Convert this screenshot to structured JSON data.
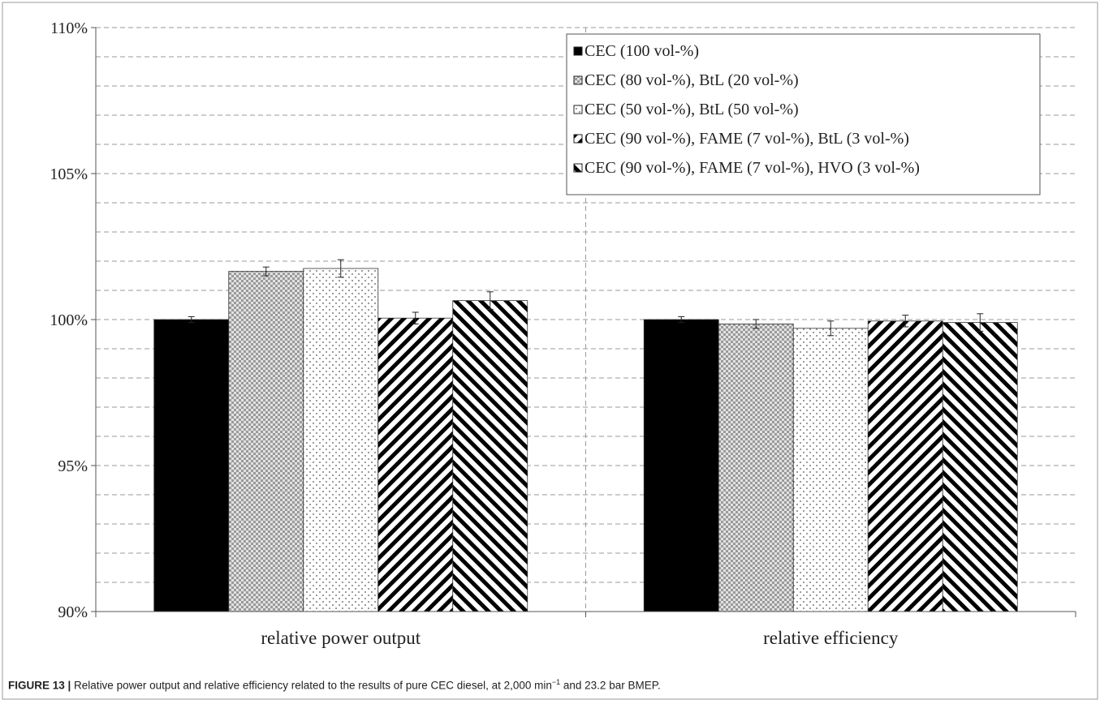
{
  "chart_data": {
    "type": "bar",
    "categories": [
      "relative power output",
      "relative efficiency"
    ],
    "series": [
      {
        "name": "CEC (100 vol-%)",
        "values": [
          100.0,
          100.0
        ],
        "errors": [
          0.1,
          0.1
        ],
        "pattern": "solid",
        "color": "#000000"
      },
      {
        "name": "CEC (80 vol-%), BtL (20 vol-%)",
        "values": [
          101.65,
          99.85
        ],
        "errors": [
          0.15,
          0.15
        ],
        "pattern": "checker",
        "color": "#9a9a9a"
      },
      {
        "name": "CEC (50 vol-%), BtL (50 vol-%)",
        "values": [
          101.75,
          99.7
        ],
        "errors": [
          0.3,
          0.25
        ],
        "pattern": "dots",
        "color": "#666666"
      },
      {
        "name": "CEC (90 vol-%), FAME (7 vol-%), BtL (3 vol-%)",
        "values": [
          100.05,
          99.95
        ],
        "errors": [
          0.2,
          0.2
        ],
        "pattern": "hatch-right",
        "color": "#000000"
      },
      {
        "name": "CEC (90 vol-%), FAME (7 vol-%), HVO (3 vol-%)",
        "values": [
          100.65,
          99.9
        ],
        "errors": [
          0.3,
          0.3
        ],
        "pattern": "hatch-left",
        "color": "#000000"
      }
    ],
    "ylim": [
      90,
      110
    ],
    "yticks": [
      "90%",
      "95%",
      "100%",
      "105%",
      "110%"
    ],
    "ytick_values": [
      90,
      95,
      100,
      105,
      110
    ],
    "grid": true,
    "legend_position": "top-right"
  },
  "caption": {
    "label": "FIGURE 13 |",
    "text_before": " Relative power output and relative efficiency related to the results of pure CEC diesel, at 2,000 min",
    "superscript": "−1",
    "text_after": " and 23.2 bar BMEP."
  }
}
